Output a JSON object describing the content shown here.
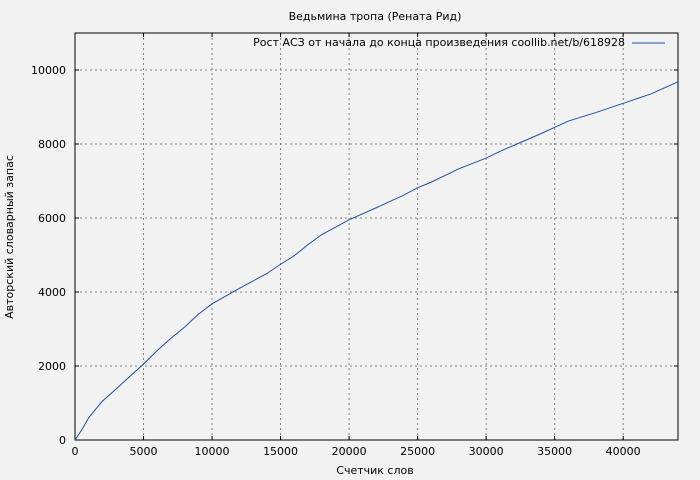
{
  "chart_data": {
    "type": "line",
    "title": "Ведьмина тропа (Рената Рид)",
    "xlabel": "Счетчик слов",
    "ylabel": "Авторский словарный запас",
    "xlim": [
      0,
      44000
    ],
    "ylim": [
      0,
      11000
    ],
    "xticks": [
      0,
      5000,
      10000,
      15000,
      20000,
      25000,
      30000,
      35000,
      40000
    ],
    "yticks": [
      0,
      2000,
      4000,
      6000,
      8000,
      10000
    ],
    "grid": true,
    "legend_position": "top-right",
    "series": [
      {
        "name": "Рост АСЗ от начала до конца произведения coollib.net/b/618928",
        "color": "#1f4fa8",
        "x": [
          0,
          500,
          1000,
          1500,
          2000,
          3000,
          4000,
          5000,
          6000,
          7000,
          8000,
          9000,
          10000,
          12000,
          14000,
          15000,
          16000,
          17000,
          18000,
          20000,
          22000,
          24000,
          25000,
          26000,
          28000,
          30000,
          31000,
          32000,
          34000,
          36000,
          38000,
          40000,
          42000,
          44000
        ],
        "y": [
          0,
          280,
          600,
          830,
          1050,
          1380,
          1720,
          2050,
          2420,
          2750,
          3050,
          3400,
          3680,
          4100,
          4500,
          4750,
          4980,
          5280,
          5550,
          5950,
          6280,
          6620,
          6820,
          6970,
          7330,
          7620,
          7800,
          7960,
          8280,
          8620,
          8850,
          9100,
          9350,
          9680
        ]
      }
    ]
  }
}
